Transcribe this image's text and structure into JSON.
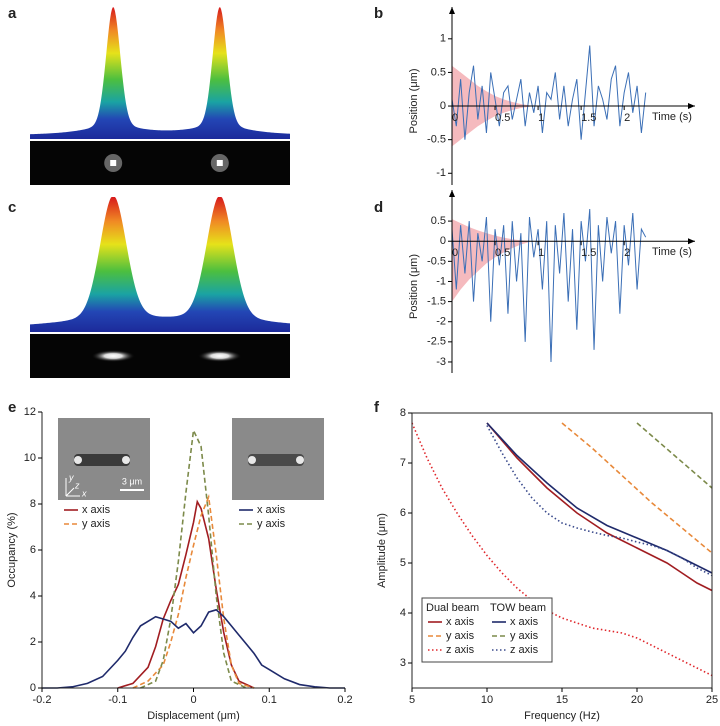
{
  "chart_data": [
    {
      "type": "image",
      "panel": "a"
    },
    {
      "type": "line",
      "panel": "b",
      "axes_at_zero": true,
      "xlabel": "Time (s)",
      "ylabel": "Position (μm)",
      "xlim": [
        0,
        2.3
      ],
      "xticks": [
        0,
        0.5,
        1,
        1.5,
        2
      ],
      "ylim": [
        -1.1,
        1.25
      ],
      "yticks": [
        -1,
        -0.5,
        0,
        0.5,
        1
      ],
      "x": [
        0,
        0.05,
        0.1,
        0.15,
        0.2,
        0.25,
        0.3,
        0.35,
        0.4,
        0.45,
        0.5,
        0.55,
        0.6,
        0.65,
        0.7,
        0.75,
        0.8,
        0.85,
        0.9,
        0.95,
        1,
        1.05,
        1.1,
        1.15,
        1.2,
        1.25,
        1.3,
        1.35,
        1.4,
        1.45,
        1.5,
        1.55,
        1.6,
        1.65,
        1.7,
        1.75,
        1.8,
        1.85,
        1.9,
        1.95,
        2,
        2.05,
        2.1,
        2.15,
        2.2,
        2.25
      ],
      "series": [
        {
          "color": "#3b6fb6",
          "values": [
            0.1,
            -0.3,
            0.4,
            -0.5,
            0.2,
            0.6,
            -0.2,
            0.3,
            -0.4,
            0.5,
            0.1,
            -0.3,
            0.2,
            0.3,
            -0.2,
            0.1,
            0.4,
            -0.3,
            0.2,
            -0.1,
            0.3,
            -0.4,
            0.2,
            0.1,
            0.5,
            -0.2,
            0.3,
            -0.3,
            0.1,
            0.4,
            -0.5,
            0.2,
            0.9,
            -0.3,
            0.3,
            0.1,
            -0.2,
            0.4,
            0.6,
            -0.3,
            0.2,
            0.5,
            -0.1,
            0.3,
            -0.4,
            0.2
          ]
        }
      ],
      "band": {
        "color": "#f2a3a8",
        "x": [
          0,
          0.1,
          0.2,
          0.3,
          0.4,
          0.5,
          0.6,
          0.7,
          0.8,
          0.9
        ],
        "upper": [
          0.6,
          0.5,
          0.4,
          0.3,
          0.22,
          0.15,
          0.1,
          0.06,
          0.03,
          0.01
        ],
        "lower": [
          -0.6,
          -0.5,
          -0.4,
          -0.3,
          -0.22,
          -0.15,
          -0.1,
          -0.06,
          -0.03,
          -0.01
        ]
      }
    },
    {
      "type": "image",
      "panel": "c"
    },
    {
      "type": "line",
      "panel": "d",
      "axes_at_zero": true,
      "xlabel": "Time (s)",
      "ylabel": "Position (μm)",
      "xlim": [
        0,
        2.3
      ],
      "xticks": [
        0,
        0.5,
        1,
        1.5,
        2
      ],
      "ylim": [
        -3.15,
        0.9
      ],
      "yticks": [
        -3,
        -2.5,
        -2,
        -1.5,
        -1,
        -0.5,
        0,
        0.5
      ],
      "x": [
        0,
        0.05,
        0.1,
        0.15,
        0.2,
        0.25,
        0.3,
        0.35,
        0.4,
        0.45,
        0.5,
        0.55,
        0.6,
        0.65,
        0.7,
        0.75,
        0.8,
        0.85,
        0.9,
        0.95,
        1,
        1.05,
        1.1,
        1.15,
        1.2,
        1.25,
        1.3,
        1.35,
        1.4,
        1.45,
        1.5,
        1.55,
        1.6,
        1.65,
        1.7,
        1.75,
        1.8,
        1.85,
        1.9,
        1.95,
        2,
        2.05,
        2.1,
        2.15,
        2.2,
        2.25
      ],
      "series": [
        {
          "color": "#3b6fb6",
          "values": [
            0.3,
            -1.2,
            0.4,
            -0.8,
            0.5,
            -1.5,
            0.2,
            -0.5,
            0.6,
            -2.0,
            0.3,
            -0.6,
            0.4,
            -1.8,
            0.5,
            -1.0,
            0.2,
            -2.5,
            0.6,
            -0.4,
            0.3,
            -1.2,
            0.5,
            -3.0,
            0.4,
            -0.8,
            0.7,
            -1.5,
            0.3,
            -2.2,
            0.5,
            -0.5,
            0.8,
            -2.7,
            0.4,
            -1.0,
            0.6,
            -0.3,
            0.5,
            -1.8,
            0.4,
            -0.6,
            0.7,
            -1.2,
            0.3,
            0.1
          ]
        }
      ],
      "band": {
        "color": "#f2a3a8",
        "x": [
          0,
          0.1,
          0.2,
          0.3,
          0.4,
          0.5,
          0.6,
          0.7,
          0.8,
          0.9
        ],
        "upper": [
          0.55,
          0.45,
          0.35,
          0.27,
          0.2,
          0.14,
          0.09,
          0.05,
          0.02,
          0.01
        ],
        "lower": [
          -1.5,
          -1.2,
          -0.95,
          -0.75,
          -0.55,
          -0.4,
          -0.28,
          -0.17,
          -0.08,
          -0.02
        ]
      }
    },
    {
      "type": "line",
      "panel": "e",
      "xlabel": "Displacement (μm)",
      "ylabel": "Occupancy (%)",
      "legend": "upper",
      "xlim": [
        -0.2,
        0.2
      ],
      "xticks": [
        -0.2,
        -0.1,
        0,
        0.1,
        0.2
      ],
      "ylim": [
        0,
        12
      ],
      "yticks": [
        0,
        2,
        4,
        6,
        8,
        10,
        12
      ],
      "annotations": [
        "3 μm",
        "y",
        "z",
        "x"
      ],
      "series": [
        {
          "name": "x axis",
          "group": "Dual beam",
          "color": "#a11d21",
          "dash": "solid",
          "x": [
            -0.1,
            -0.08,
            -0.06,
            -0.05,
            -0.04,
            -0.03,
            -0.02,
            -0.01,
            0,
            0.005,
            0.01,
            0.02,
            0.03,
            0.04,
            0.05,
            0.06,
            0.08
          ],
          "values": [
            0,
            0.2,
            0.9,
            1.8,
            3.0,
            3.8,
            4.5,
            5.8,
            7.2,
            8.1,
            7.8,
            6.5,
            4.3,
            2.4,
            1.0,
            0.3,
            0
          ]
        },
        {
          "name": "y axis",
          "group": "Dual beam",
          "color": "#e8893a",
          "dash": "dashed",
          "x": [
            -0.08,
            -0.06,
            -0.04,
            -0.03,
            -0.02,
            -0.01,
            0,
            0.01,
            0.02,
            0.03,
            0.04,
            0.05,
            0.06,
            0.08
          ],
          "values": [
            0,
            0.3,
            1.0,
            2.0,
            3.2,
            4.8,
            6.2,
            7.5,
            8.3,
            5.8,
            3.0,
            1.0,
            0.2,
            0
          ]
        },
        {
          "name": "x axis",
          "group": "TOW beam",
          "color": "#1f2a6b",
          "dash": "solid",
          "x": [
            -0.2,
            -0.18,
            -0.16,
            -0.14,
            -0.12,
            -0.1,
            -0.09,
            -0.08,
            -0.07,
            -0.06,
            -0.05,
            -0.04,
            -0.03,
            -0.02,
            -0.01,
            0,
            0.01,
            0.02,
            0.03,
            0.04,
            0.05,
            0.06,
            0.07,
            0.08,
            0.09,
            0.1,
            0.12,
            0.14,
            0.16,
            0.18,
            0.2
          ],
          "values": [
            0,
            0,
            0.05,
            0.2,
            0.5,
            1.2,
            1.6,
            2.2,
            2.7,
            2.9,
            3.1,
            3.0,
            2.9,
            2.6,
            2.8,
            2.4,
            2.7,
            3.3,
            3.4,
            3.1,
            2.7,
            2.3,
            1.9,
            1.5,
            1.0,
            0.8,
            0.4,
            0.15,
            0.05,
            0,
            0
          ]
        },
        {
          "name": "y axis",
          "group": "TOW beam",
          "color": "#7c8a4a",
          "dash": "dashed",
          "x": [
            -0.07,
            -0.05,
            -0.04,
            -0.03,
            -0.02,
            -0.01,
            0,
            0.01,
            0.02,
            0.03,
            0.04,
            0.05,
            0.07
          ],
          "values": [
            0,
            0.3,
            1.2,
            3.0,
            5.5,
            8.5,
            11.2,
            10.5,
            7.5,
            4.0,
            1.5,
            0.3,
            0
          ]
        }
      ]
    },
    {
      "type": "line",
      "panel": "f",
      "xlabel": "Frequency (Hz)",
      "ylabel": "Amplitude (μm)",
      "legend": "lower left",
      "frame": true,
      "xlim": [
        5,
        25
      ],
      "xticks": [
        5,
        10,
        15,
        20,
        25
      ],
      "ylim": [
        2.5,
        8
      ],
      "yticks": [
        3,
        4,
        5,
        6,
        7,
        8
      ],
      "series": [
        {
          "name": "x axis",
          "group": "Dual beam",
          "color": "#a11d21",
          "dash": "solid",
          "x": [
            10,
            11,
            12,
            13,
            14,
            15,
            16,
            17,
            18,
            19,
            20,
            21,
            22,
            23,
            24,
            25
          ],
          "values": [
            7.8,
            7.45,
            7.1,
            6.8,
            6.5,
            6.25,
            6.0,
            5.8,
            5.6,
            5.45,
            5.3,
            5.15,
            5.0,
            4.8,
            4.6,
            4.45
          ]
        },
        {
          "name": "y axis",
          "group": "Dual beam",
          "color": "#e8893a",
          "dash": "dashed",
          "x": [
            15,
            17,
            19,
            21,
            23,
            25
          ],
          "values": [
            7.8,
            7.3,
            6.75,
            6.2,
            5.7,
            5.2
          ]
        },
        {
          "name": "z axis",
          "group": "Dual beam",
          "color": "#e0262b",
          "dash": "dotted",
          "x": [
            5,
            6,
            7,
            8,
            9,
            10,
            11,
            12,
            13,
            14,
            15,
            16,
            17,
            18,
            19,
            20,
            21,
            22,
            23,
            24,
            25
          ],
          "values": [
            7.8,
            7.1,
            6.5,
            6.0,
            5.55,
            5.15,
            4.8,
            4.5,
            4.25,
            4.05,
            3.9,
            3.8,
            3.7,
            3.65,
            3.6,
            3.5,
            3.35,
            3.2,
            3.05,
            2.9,
            2.75
          ]
        },
        {
          "name": "x axis",
          "group": "TOW beam",
          "color": "#1f2a6b",
          "dash": "solid",
          "x": [
            10,
            12,
            14,
            16,
            18,
            20,
            22,
            24,
            25
          ],
          "values": [
            7.8,
            7.15,
            6.6,
            6.1,
            5.75,
            5.5,
            5.25,
            4.95,
            4.8
          ]
        },
        {
          "name": "y axis",
          "group": "TOW beam",
          "color": "#7c8a4a",
          "dash": "dashed",
          "x": [
            20,
            22.5,
            25
          ],
          "values": [
            7.8,
            7.15,
            6.5
          ]
        },
        {
          "name": "z axis",
          "group": "TOW beam",
          "color": "#3a4a8c",
          "dash": "dotted",
          "x": [
            10,
            11,
            12,
            13,
            14,
            15,
            16,
            17,
            18,
            19,
            20,
            21,
            22,
            23,
            24,
            25
          ],
          "values": [
            7.75,
            7.2,
            6.7,
            6.3,
            6.0,
            5.8,
            5.7,
            5.62,
            5.55,
            5.5,
            5.42,
            5.35,
            5.25,
            5.1,
            4.9,
            4.75
          ]
        }
      ]
    }
  ]
}
